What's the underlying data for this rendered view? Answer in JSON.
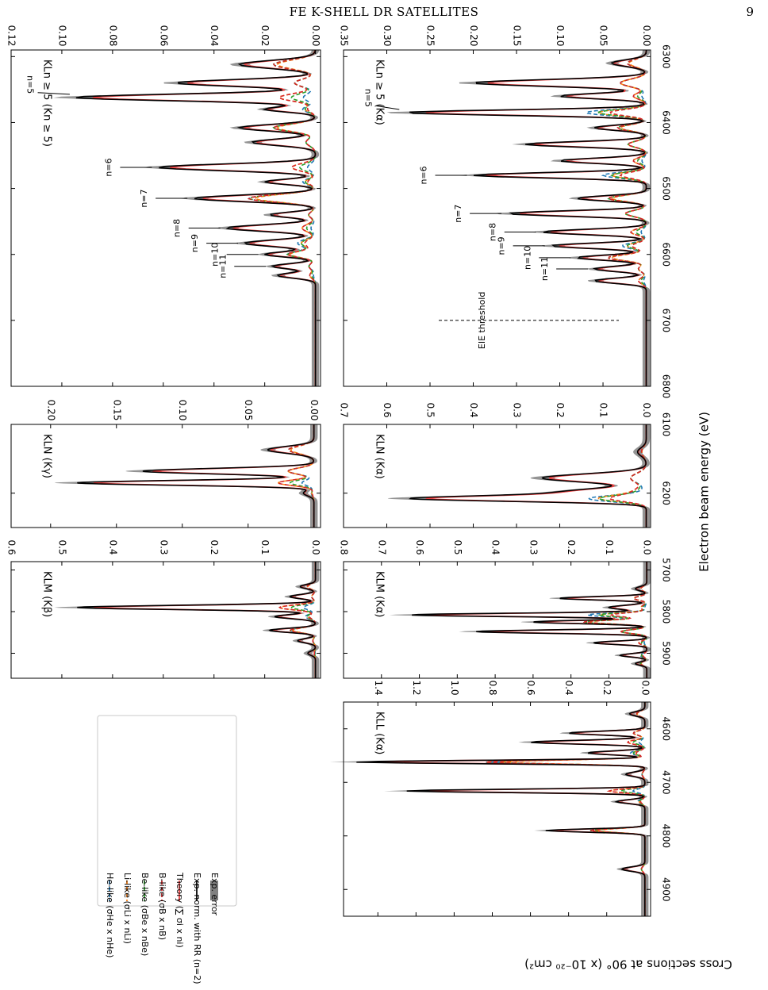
{
  "header": {
    "running_title": "FE K-SHELL DR SATELLITES",
    "page_number": "9"
  },
  "figure": {
    "shared_xlabel": "Electron beam energy (eV)",
    "shared_ylabel": "Cross sections at 90° (x 10⁻²⁰ cm²)",
    "legend": [
      {
        "label": "He-like (σHe x nHe)",
        "color": "#1f77b4",
        "style": "dashed"
      },
      {
        "label": "Li-like (σLi x nLi)",
        "color": "#ff7f0e",
        "style": "dashed"
      },
      {
        "label": "Be-like (σBe x nBe)",
        "color": "#2ca02c",
        "style": "dashed"
      },
      {
        "label": "B-like (σB x nB)",
        "color": "#d62728",
        "style": "dashed"
      },
      {
        "label": "Theory (∑ σi x ni)",
        "color": "#ef4444",
        "style": "solid"
      },
      {
        "label": "Exp. norm. with RR (n=2)",
        "color": "#000000",
        "style": "solid"
      },
      {
        "label": "Exp. error",
        "color": "#808080",
        "style": "band"
      }
    ]
  },
  "chart_data": [
    {
      "id": "klmkb",
      "type": "line",
      "title": "KLM (Kβ)",
      "xlim": [
        5680,
        5960
      ],
      "ylim": [
        -0.01,
        0.6
      ],
      "xticks": [
        5700,
        5800,
        5900
      ],
      "yticks": [
        0.0,
        0.1,
        0.2,
        0.3,
        0.4,
        0.5,
        0.6
      ],
      "ytick_labels": [
        "0.0",
        "0.1",
        "0.2",
        "0.3",
        "0.4",
        "0.5",
        "0.6"
      ],
      "xtick_labels": [],
      "peaks": [
        [
          5740,
          0.03,
          5
        ],
        [
          5764,
          0.05,
          5
        ],
        [
          5790,
          0.47,
          5
        ],
        [
          5812,
          0.08,
          5
        ],
        [
          5845,
          0.09,
          5
        ],
        [
          5870,
          0.035,
          5
        ],
        [
          5900,
          0.015,
          5
        ]
      ],
      "annotations": []
    },
    {
      "id": "klnkg",
      "type": "line",
      "title": "KLN (Kγ)",
      "xlim": [
        6100,
        6250
      ],
      "ylim": [
        -0.005,
        0.23
      ],
      "xticks": [
        6100,
        6200
      ],
      "yticks": [
        0.0,
        0.05,
        0.1,
        0.15,
        0.2
      ],
      "ytick_labels": [
        "0.00",
        "0.05",
        "0.10",
        "0.15",
        "0.20"
      ],
      "xtick_labels": [],
      "peaks": [
        [
          6137,
          0.035,
          5
        ],
        [
          6168,
          0.13,
          4
        ],
        [
          6185,
          0.18,
          3.5
        ],
        [
          6200,
          0.008,
          4
        ]
      ],
      "annotations": []
    },
    {
      "id": "kln5kn",
      "type": "line",
      "title": "KLn ≥ 5 (Kn ≥ 5)",
      "xlim": [
        6290,
        6800
      ],
      "ylim": [
        -0.002,
        0.12
      ],
      "xticks": [
        6300,
        6400,
        6500,
        6600,
        6700,
        6800
      ],
      "yticks": [
        0.0,
        0.02,
        0.04,
        0.06,
        0.08,
        0.1,
        0.12
      ],
      "ytick_labels": [
        "0.00",
        "0.02",
        "0.04",
        "0.06",
        "0.08",
        "0.10",
        "0.12"
      ],
      "xtick_labels": [],
      "peaks": [
        [
          6312,
          0.03,
          6
        ],
        [
          6340,
          0.055,
          5
        ],
        [
          6362,
          0.095,
          5
        ],
        [
          6380,
          0.02,
          4
        ],
        [
          6408,
          0.03,
          5
        ],
        [
          6430,
          0.025,
          5
        ],
        [
          6468,
          0.062,
          5
        ],
        [
          6490,
          0.02,
          4
        ],
        [
          6515,
          0.048,
          5
        ],
        [
          6540,
          0.018,
          4
        ],
        [
          6560,
          0.035,
          5
        ],
        [
          6583,
          0.028,
          5
        ],
        [
          6600,
          0.02,
          4
        ],
        [
          6618,
          0.017,
          4
        ],
        [
          6632,
          0.015,
          4
        ]
      ],
      "annotations": [
        {
          "text": "n=5",
          "x": 6362,
          "y": 0.095,
          "tx": 6345,
          "ty": 0.112,
          "arrow": true
        },
        {
          "text": "n=6",
          "x": 6468,
          "y": 0.062,
          "tx": 6448,
          "ty": 0.062,
          "arrow": false
        },
        {
          "text": "n=7",
          "x": 6515,
          "y": 0.048,
          "tx": 6495,
          "ty": 0.05,
          "arrow": false
        },
        {
          "text": "n=8",
          "x": 6560,
          "y": 0.035,
          "tx": 6542,
          "ty": 0.04,
          "arrow": false
        },
        {
          "text": "n=9",
          "x": 6583,
          "y": 0.028,
          "tx": 6583,
          "ty": 0.04,
          "arrow": false
        },
        {
          "text": "n=10",
          "x": 6600,
          "y": 0.02,
          "tx": 6600,
          "ty": 0.04,
          "arrow": false
        },
        {
          "text": "n=11",
          "x": 6618,
          "y": 0.017,
          "tx": 6618,
          "ty": 0.04,
          "arrow": false
        }
      ]
    },
    {
      "id": "kll",
      "type": "line",
      "title": "KLL (Kα)",
      "xlim": [
        4550,
        4950
      ],
      "ylim": [
        -0.03,
        1.58
      ],
      "xticks": [
        4600,
        4700,
        4800,
        4900
      ],
      "yticks": [
        0.0,
        0.2,
        0.4,
        0.6,
        0.8,
        1.0,
        1.2,
        1.4
      ],
      "ytick_labels": [
        "0.0",
        "0.2",
        "0.4",
        "0.6",
        "0.8",
        "1.0",
        "1.2",
        "1.4"
      ],
      "xtick_labels": [
        "4600",
        "4700",
        "4800",
        "4900"
      ],
      "peaks": [
        [
          4572,
          0.08,
          4
        ],
        [
          4608,
          0.4,
          3.5
        ],
        [
          4625,
          0.6,
          3.5
        ],
        [
          4645,
          0.3,
          3.5
        ],
        [
          4662,
          1.52,
          3
        ],
        [
          4685,
          0.1,
          4
        ],
        [
          4716,
          1.25,
          3
        ],
        [
          4736,
          0.15,
          3.5
        ],
        [
          4790,
          0.52,
          3
        ],
        [
          4862,
          0.12,
          4
        ]
      ],
      "annotations": []
    },
    {
      "id": "klmka",
      "type": "line",
      "title": "KLM (Kα)",
      "xlim": [
        5680,
        5960
      ],
      "ylim": [
        -0.01,
        0.8
      ],
      "xticks": [
        5700,
        5800,
        5900
      ],
      "yticks": [
        0.0,
        0.1,
        0.2,
        0.3,
        0.4,
        0.5,
        0.6,
        0.7,
        0.8
      ],
      "ytick_labels": [
        "0.0",
        "0.1",
        "0.2",
        "0.3",
        "0.4",
        "0.5",
        "0.6",
        "0.7",
        "0.8"
      ],
      "xtick_labels": [
        "5700",
        "5800",
        "5900"
      ],
      "peaks": [
        [
          5745,
          0.03,
          5
        ],
        [
          5768,
          0.23,
          4
        ],
        [
          5790,
          0.1,
          5
        ],
        [
          5808,
          0.62,
          4
        ],
        [
          5825,
          0.3,
          4
        ],
        [
          5848,
          0.45,
          4
        ],
        [
          5875,
          0.14,
          4
        ],
        [
          5905,
          0.07,
          4
        ],
        [
          5925,
          0.03,
          4
        ]
      ],
      "annotations": []
    },
    {
      "id": "klnka",
      "type": "line",
      "title": "KLN (Kα)",
      "xlim": [
        6100,
        6250
      ],
      "ylim": [
        -0.01,
        0.7
      ],
      "xticks": [
        6100,
        6200
      ],
      "yticks": [
        0.0,
        0.1,
        0.2,
        0.3,
        0.4,
        0.5,
        0.6,
        0.7
      ],
      "ytick_labels": [
        "0.0",
        "0.1",
        "0.2",
        "0.3",
        "0.4",
        "0.5",
        "0.6",
        "0.7"
      ],
      "xtick_labels": [
        "6100",
        "6200"
      ],
      "peaks": [
        [
          6140,
          0.02,
          6
        ],
        [
          6178,
          0.24,
          6
        ],
        [
          6198,
          0.18,
          5
        ],
        [
          6208,
          0.52,
          4
        ]
      ],
      "annotations": []
    },
    {
      "id": "kln5ka",
      "type": "line",
      "title": "KLn ≥ 5 (Kα)",
      "xlim": [
        6290,
        6800
      ],
      "ylim": [
        -0.005,
        0.35
      ],
      "xticks": [
        6300,
        6400,
        6500,
        6600,
        6700,
        6800
      ],
      "yticks": [
        0.0,
        0.05,
        0.1,
        0.15,
        0.2,
        0.25,
        0.3,
        0.35
      ],
      "ytick_labels": [
        "0.00",
        "0.05",
        "0.10",
        "0.15",
        "0.20",
        "0.25",
        "0.30",
        "0.35"
      ],
      "xtick_labels": [
        "6300",
        "6400",
        "6500",
        "6600",
        "6700",
        "6800"
      ],
      "peaks": [
        [
          6310,
          0.04,
          5
        ],
        [
          6340,
          0.2,
          5
        ],
        [
          6360,
          0.1,
          4
        ],
        [
          6385,
          0.28,
          4
        ],
        [
          6408,
          0.06,
          4
        ],
        [
          6433,
          0.14,
          4
        ],
        [
          6458,
          0.1,
          4
        ],
        [
          6480,
          0.2,
          4
        ],
        [
          6515,
          0.08,
          4
        ],
        [
          6538,
          0.16,
          4
        ],
        [
          6566,
          0.12,
          4
        ],
        [
          6587,
          0.11,
          4
        ],
        [
          6605,
          0.08,
          4
        ],
        [
          6622,
          0.06,
          4
        ],
        [
          6640,
          0.06,
          4
        ]
      ],
      "annotations": [
        {
          "text": "n=5",
          "x": 6385,
          "y": 0.28,
          "tx": 6365,
          "ty": 0.32,
          "arrow": true
        },
        {
          "text": "n=6",
          "x": 6480,
          "y": 0.2,
          "tx": 6470,
          "ty": 0.18,
          "arrow": false
        },
        {
          "text": "n=7",
          "x": 6538,
          "y": 0.16,
          "tx": 6530,
          "ty": 0.175,
          "arrow": false
        },
        {
          "text": "n=8",
          "x": 6566,
          "y": 0.12,
          "tx": 6566,
          "ty": 0.16,
          "arrow": false
        },
        {
          "text": "n=9",
          "x": 6587,
          "y": 0.11,
          "tx": 6587,
          "ty": 0.16,
          "arrow": false
        },
        {
          "text": "n=10",
          "x": 6605,
          "y": 0.08,
          "tx": 6605,
          "ty": 0.16,
          "arrow": false
        },
        {
          "text": "n=11",
          "x": 6622,
          "y": 0.06,
          "tx": 6622,
          "ty": 0.16,
          "arrow": false
        }
      ],
      "threshold": {
        "x": 6700,
        "label": "EIE threshold"
      }
    }
  ]
}
